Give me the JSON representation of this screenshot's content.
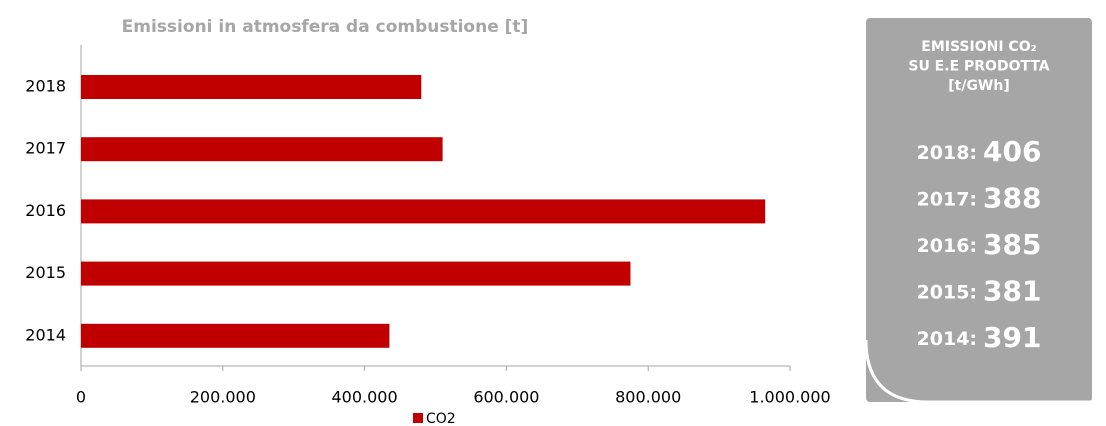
{
  "chart_data": {
    "type": "hbar",
    "title": "Emissioni in atmosfera da combustione [t]",
    "categories": [
      "2018",
      "2017",
      "2016",
      "2015",
      "2014"
    ],
    "series": [
      {
        "name": "CO2",
        "color": "#c00000",
        "values": [
          480000,
          510000,
          965000,
          775000,
          435000
        ]
      }
    ],
    "xlim": [
      0,
      1000000
    ],
    "xticks": [
      0,
      {
        "value": 200000,
        "label": "200.000"
      },
      {
        "value": 400000,
        "label": "400.000"
      },
      {
        "value": 600000,
        "label": "600.000"
      },
      {
        "value": 800000,
        "label": "800.000"
      },
      {
        "value": 1000000,
        "label": "1.000.000"
      }
    ],
    "grid": false,
    "legend": "bottom"
  },
  "panel": {
    "title_lines": [
      "EMISSIONI CO₂",
      "SU E.E PRODOTTA",
      "[t/GWh]"
    ],
    "items": [
      {
        "year": "2018:",
        "value": 406
      },
      {
        "year": "2017:",
        "value": 388
      },
      {
        "year": "2016:",
        "value": 385
      },
      {
        "year": "2015:",
        "value": 381
      },
      {
        "year": "2014:",
        "value": 391
      }
    ]
  }
}
